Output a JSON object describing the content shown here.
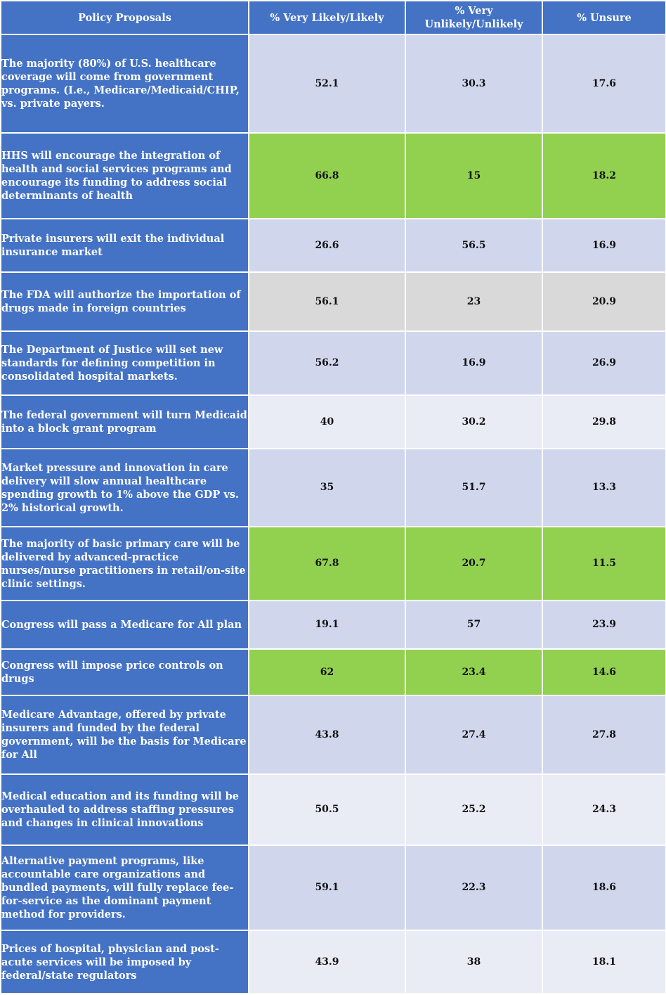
{
  "headers": [
    "Policy Proposals",
    "% Very Likely/Likely",
    "% Very Unlikely/Unlikely",
    "% Unsure"
  ],
  "colors": {
    "header_blue": "#4472c4",
    "row_blue": "#d0d7ed",
    "row_green": "#92d050",
    "row_grey": "#d9d9d9",
    "row_light": "#e9ebf5"
  },
  "rows": [
    {
      "proposal": "The majority (80%) of U.S. healthcare coverage will come from government programs. (I.e., Medicare/Medicaid/CHIP, vs. private payers.",
      "likely": "52.1",
      "unlikely": "30.3",
      "unsure": "17.6",
      "shade": "blue"
    },
    {
      "proposal": "HHS will encourage the integration of health and social services programs and encourage its funding to address social determinants of health",
      "likely": "66.8",
      "unlikely": "15",
      "unsure": "18.2",
      "shade": "green"
    },
    {
      "proposal": "Private insurers will exit the individual insurance market",
      "likely": "26.6",
      "unlikely": "56.5",
      "unsure": "16.9",
      "shade": "blue"
    },
    {
      "proposal": "The FDA will authorize the importation of drugs made in foreign countries",
      "likely": "56.1",
      "unlikely": "23",
      "unsure": "20.9",
      "shade": "grey"
    },
    {
      "proposal": "The Department of Justice will set new standards for defining competition in consolidated hospital markets.",
      "likely": "56.2",
      "unlikely": "16.9",
      "unsure": "26.9",
      "shade": "blue"
    },
    {
      "proposal": "The federal government will turn Medicaid into a block grant program",
      "likely": "40",
      "unlikely": "30.2",
      "unsure": "29.8",
      "shade": "light"
    },
    {
      "proposal": "Market pressure and innovation in care delivery will slow annual healthcare spending growth to 1% above the GDP vs. 2% historical growth.",
      "likely": "35",
      "unlikely": "51.7",
      "unsure": "13.3",
      "shade": "blue"
    },
    {
      "proposal": "The majority of basic primary care will be delivered by advanced-practice nurses/nurse practitioners in retail/on-site clinic settings.",
      "likely": "67.8",
      "unlikely": "20.7",
      "unsure": "11.5",
      "shade": "green"
    },
    {
      "proposal": "Congress will pass a Medicare for All plan",
      "likely": "19.1",
      "unlikely": "57",
      "unsure": "23.9",
      "shade": "blue"
    },
    {
      "proposal": "Congress will impose price controls on drugs",
      "likely": "62",
      "unlikely": "23.4",
      "unsure": "14.6",
      "shade": "green"
    },
    {
      "proposal": "Medicare Advantage, offered by private insurers and funded by the federal government, will be the basis for Medicare for All",
      "likely": "43.8",
      "unlikely": "27.4",
      "unsure": "27.8",
      "shade": "blue"
    },
    {
      "proposal": "Medical education and its funding will be overhauled to address staffing pressures and changes in clinical innovations",
      "likely": "50.5",
      "unlikely": "25.2",
      "unsure": "24.3",
      "shade": "light"
    },
    {
      "proposal": "Alternative payment programs, like accountable care organizations and bundled payments, will fully replace fee-for-service as the dominant payment method for providers.",
      "likely": "59.1",
      "unlikely": "22.3",
      "unsure": "18.6",
      "shade": "blue"
    },
    {
      "proposal": "Prices of hospital, physician and post-acute services will be imposed by federal/state regulators",
      "likely": "43.9",
      "unlikely": "38",
      "unsure": "18.1",
      "shade": "light"
    }
  ]
}
